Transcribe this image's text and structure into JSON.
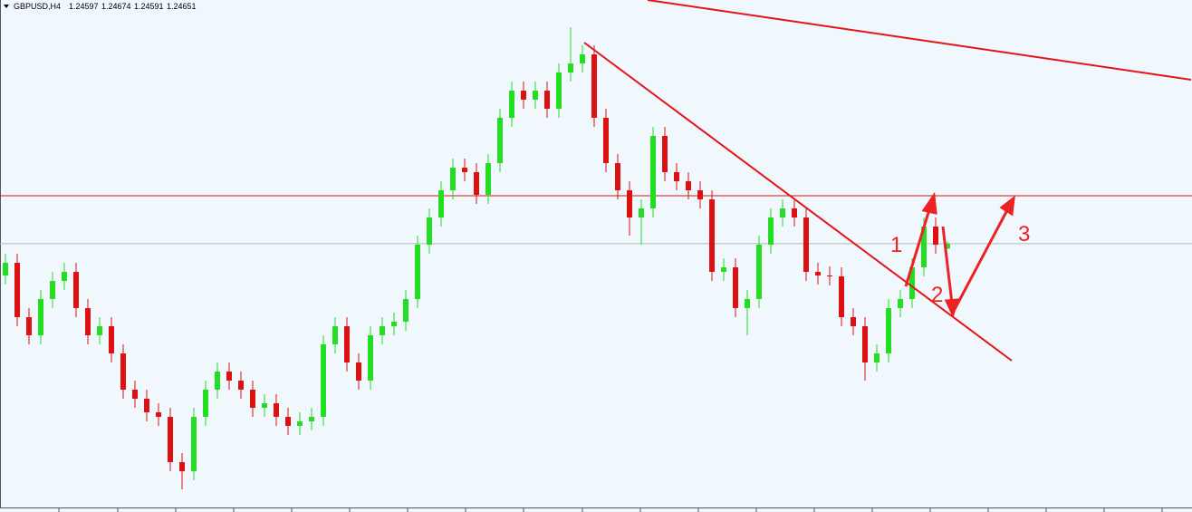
{
  "chart_data": {
    "type": "candlestick",
    "title": "GBPUSD,H4",
    "open": [
      1.243,
      1.2444,
      1.2384,
      1.2364,
      1.2404,
      1.2424,
      1.2434,
      1.2394,
      1.2364,
      1.2374,
      1.2344,
      1.2304,
      1.2294,
      1.2279,
      1.2274,
      1.2224,
      1.2214,
      1.2274,
      1.2304,
      1.2324,
      1.2314,
      1.2304,
      1.2284,
      1.2289,
      1.2274,
      1.2264,
      1.2269,
      1.2274,
      1.2354,
      1.2374,
      1.2334,
      1.2314,
      1.2364,
      1.2374,
      1.2379,
      1.2404,
      1.2464,
      1.2494,
      1.2524,
      1.2549,
      1.2544,
      1.2519,
      1.2554,
      1.2604,
      1.2634,
      1.2624,
      1.2634,
      1.2614,
      1.2654,
      1.2664,
      1.2674,
      1.2604,
      1.2554,
      1.2524,
      1.2494,
      1.2504,
      1.2584,
      1.2544,
      1.2534,
      1.2524,
      1.2514,
      1.2434,
      1.2439,
      1.2394,
      1.2404,
      1.2464,
      1.2494,
      1.2504,
      1.2494,
      1.2434,
      1.243,
      1.2429,
      1.2384,
      1.2374,
      1.2334,
      1.2344,
      1.2394,
      1.2404,
      1.2439,
      1.2484,
      1.24597
    ],
    "high": [
      1.2454,
      1.2454,
      1.2394,
      1.2414,
      1.2434,
      1.2444,
      1.2444,
      1.2404,
      1.2384,
      1.2384,
      1.2354,
      1.2314,
      1.2304,
      1.2289,
      1.2284,
      1.2234,
      1.2284,
      1.2314,
      1.2334,
      1.2334,
      1.2324,
      1.2314,
      1.2299,
      1.2299,
      1.2284,
      1.2279,
      1.2284,
      1.2364,
      1.2384,
      1.2384,
      1.2344,
      1.2374,
      1.2384,
      1.2389,
      1.2414,
      1.2474,
      1.2504,
      1.2534,
      1.2559,
      1.2559,
      1.2554,
      1.2564,
      1.2614,
      1.2644,
      1.2644,
      1.2644,
      1.2644,
      1.2664,
      1.2704,
      1.2684,
      1.2684,
      1.2614,
      1.2564,
      1.2534,
      1.2514,
      1.2594,
      1.2594,
      1.2554,
      1.2544,
      1.2534,
      1.2524,
      1.2449,
      1.2449,
      1.2414,
      1.2474,
      1.2504,
      1.2514,
      1.2514,
      1.2504,
      1.2444,
      1.244,
      1.2439,
      1.2394,
      1.2384,
      1.2354,
      1.2404,
      1.2414,
      1.2449,
      1.2494,
      1.2494,
      1.24674
    ],
    "low": [
      1.242,
      1.2374,
      1.2354,
      1.2354,
      1.2394,
      1.2414,
      1.2384,
      1.2354,
      1.2354,
      1.2334,
      1.2294,
      1.2284,
      1.2269,
      1.2264,
      1.2214,
      1.2194,
      1.2204,
      1.2264,
      1.2294,
      1.2304,
      1.2294,
      1.2274,
      1.2274,
      1.2264,
      1.2254,
      1.2254,
      1.2259,
      1.2264,
      1.2344,
      1.2324,
      1.2304,
      1.2304,
      1.2354,
      1.2364,
      1.2369,
      1.2394,
      1.2454,
      1.2484,
      1.2514,
      1.2534,
      1.2509,
      1.2509,
      1.2544,
      1.2594,
      1.2614,
      1.2614,
      1.2604,
      1.2604,
      1.2644,
      1.2654,
      1.2594,
      1.2544,
      1.2514,
      1.2474,
      1.2464,
      1.2494,
      1.2534,
      1.2524,
      1.2514,
      1.2504,
      1.2424,
      1.2424,
      1.2384,
      1.2364,
      1.2394,
      1.2454,
      1.2484,
      1.2484,
      1.2424,
      1.242,
      1.2419,
      1.2374,
      1.2364,
      1.2314,
      1.2324,
      1.2334,
      1.2384,
      1.2394,
      1.2429,
      1.2454,
      1.24591
    ],
    "close": [
      1.2444,
      1.2384,
      1.2364,
      1.2404,
      1.2424,
      1.2434,
      1.2394,
      1.2364,
      1.2374,
      1.2344,
      1.2304,
      1.2294,
      1.2279,
      1.2274,
      1.2224,
      1.2214,
      1.2274,
      1.2304,
      1.2324,
      1.2314,
      1.2304,
      1.2284,
      1.2289,
      1.2274,
      1.2264,
      1.2269,
      1.2274,
      1.2354,
      1.2374,
      1.2334,
      1.2314,
      1.2364,
      1.2374,
      1.2379,
      1.2404,
      1.2464,
      1.2494,
      1.2524,
      1.2549,
      1.2544,
      1.2519,
      1.2554,
      1.2604,
      1.2634,
      1.2624,
      1.2634,
      1.2614,
      1.2654,
      1.2664,
      1.2674,
      1.2604,
      1.2554,
      1.2524,
      1.2494,
      1.2504,
      1.2584,
      1.2544,
      1.2534,
      1.2524,
      1.2514,
      1.2434,
      1.2439,
      1.2394,
      1.2404,
      1.2464,
      1.2494,
      1.2504,
      1.2494,
      1.2434,
      1.243,
      1.2429,
      1.2384,
      1.2374,
      1.2334,
      1.2344,
      1.2394,
      1.2404,
      1.2439,
      1.2484,
      1.2464,
      1.24651
    ],
    "ylim": [
      1.2169,
      1.2734
    ],
    "up_color": "#22dd22",
    "down_color": "#dd1111",
    "level": 1.2518,
    "level_color": "#e01010",
    "bid_color": "#b8b8b8",
    "annotations": [
      "1",
      "2",
      "3"
    ]
  }
}
